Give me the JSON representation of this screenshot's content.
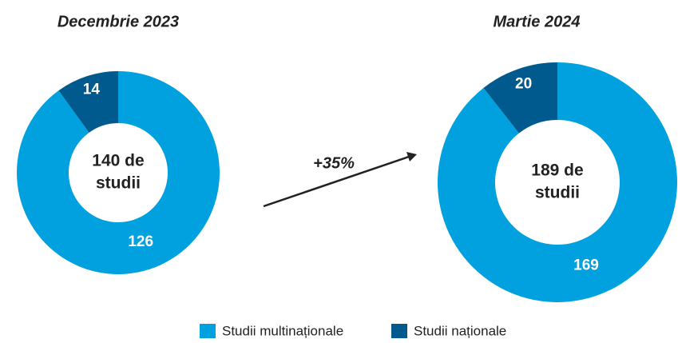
{
  "chart_data": [
    {
      "type": "donut",
      "title": "Decembrie 2023",
      "center_label": [
        "140 de",
        "studii"
      ],
      "categories": [
        "Studii multinaționale",
        "Studii naționale"
      ],
      "values": [
        126,
        14
      ],
      "colors": [
        "#00a1de",
        "#005a8e"
      ]
    },
    {
      "type": "donut",
      "title": "Martie 2024",
      "center_label": [
        "189 de",
        "studii"
      ],
      "categories": [
        "Studii multinaționale",
        "Studii naționale"
      ],
      "values": [
        169,
        20
      ],
      "colors": [
        "#00a1de",
        "#005a8e"
      ]
    }
  ],
  "annotation": "+35%"
}
